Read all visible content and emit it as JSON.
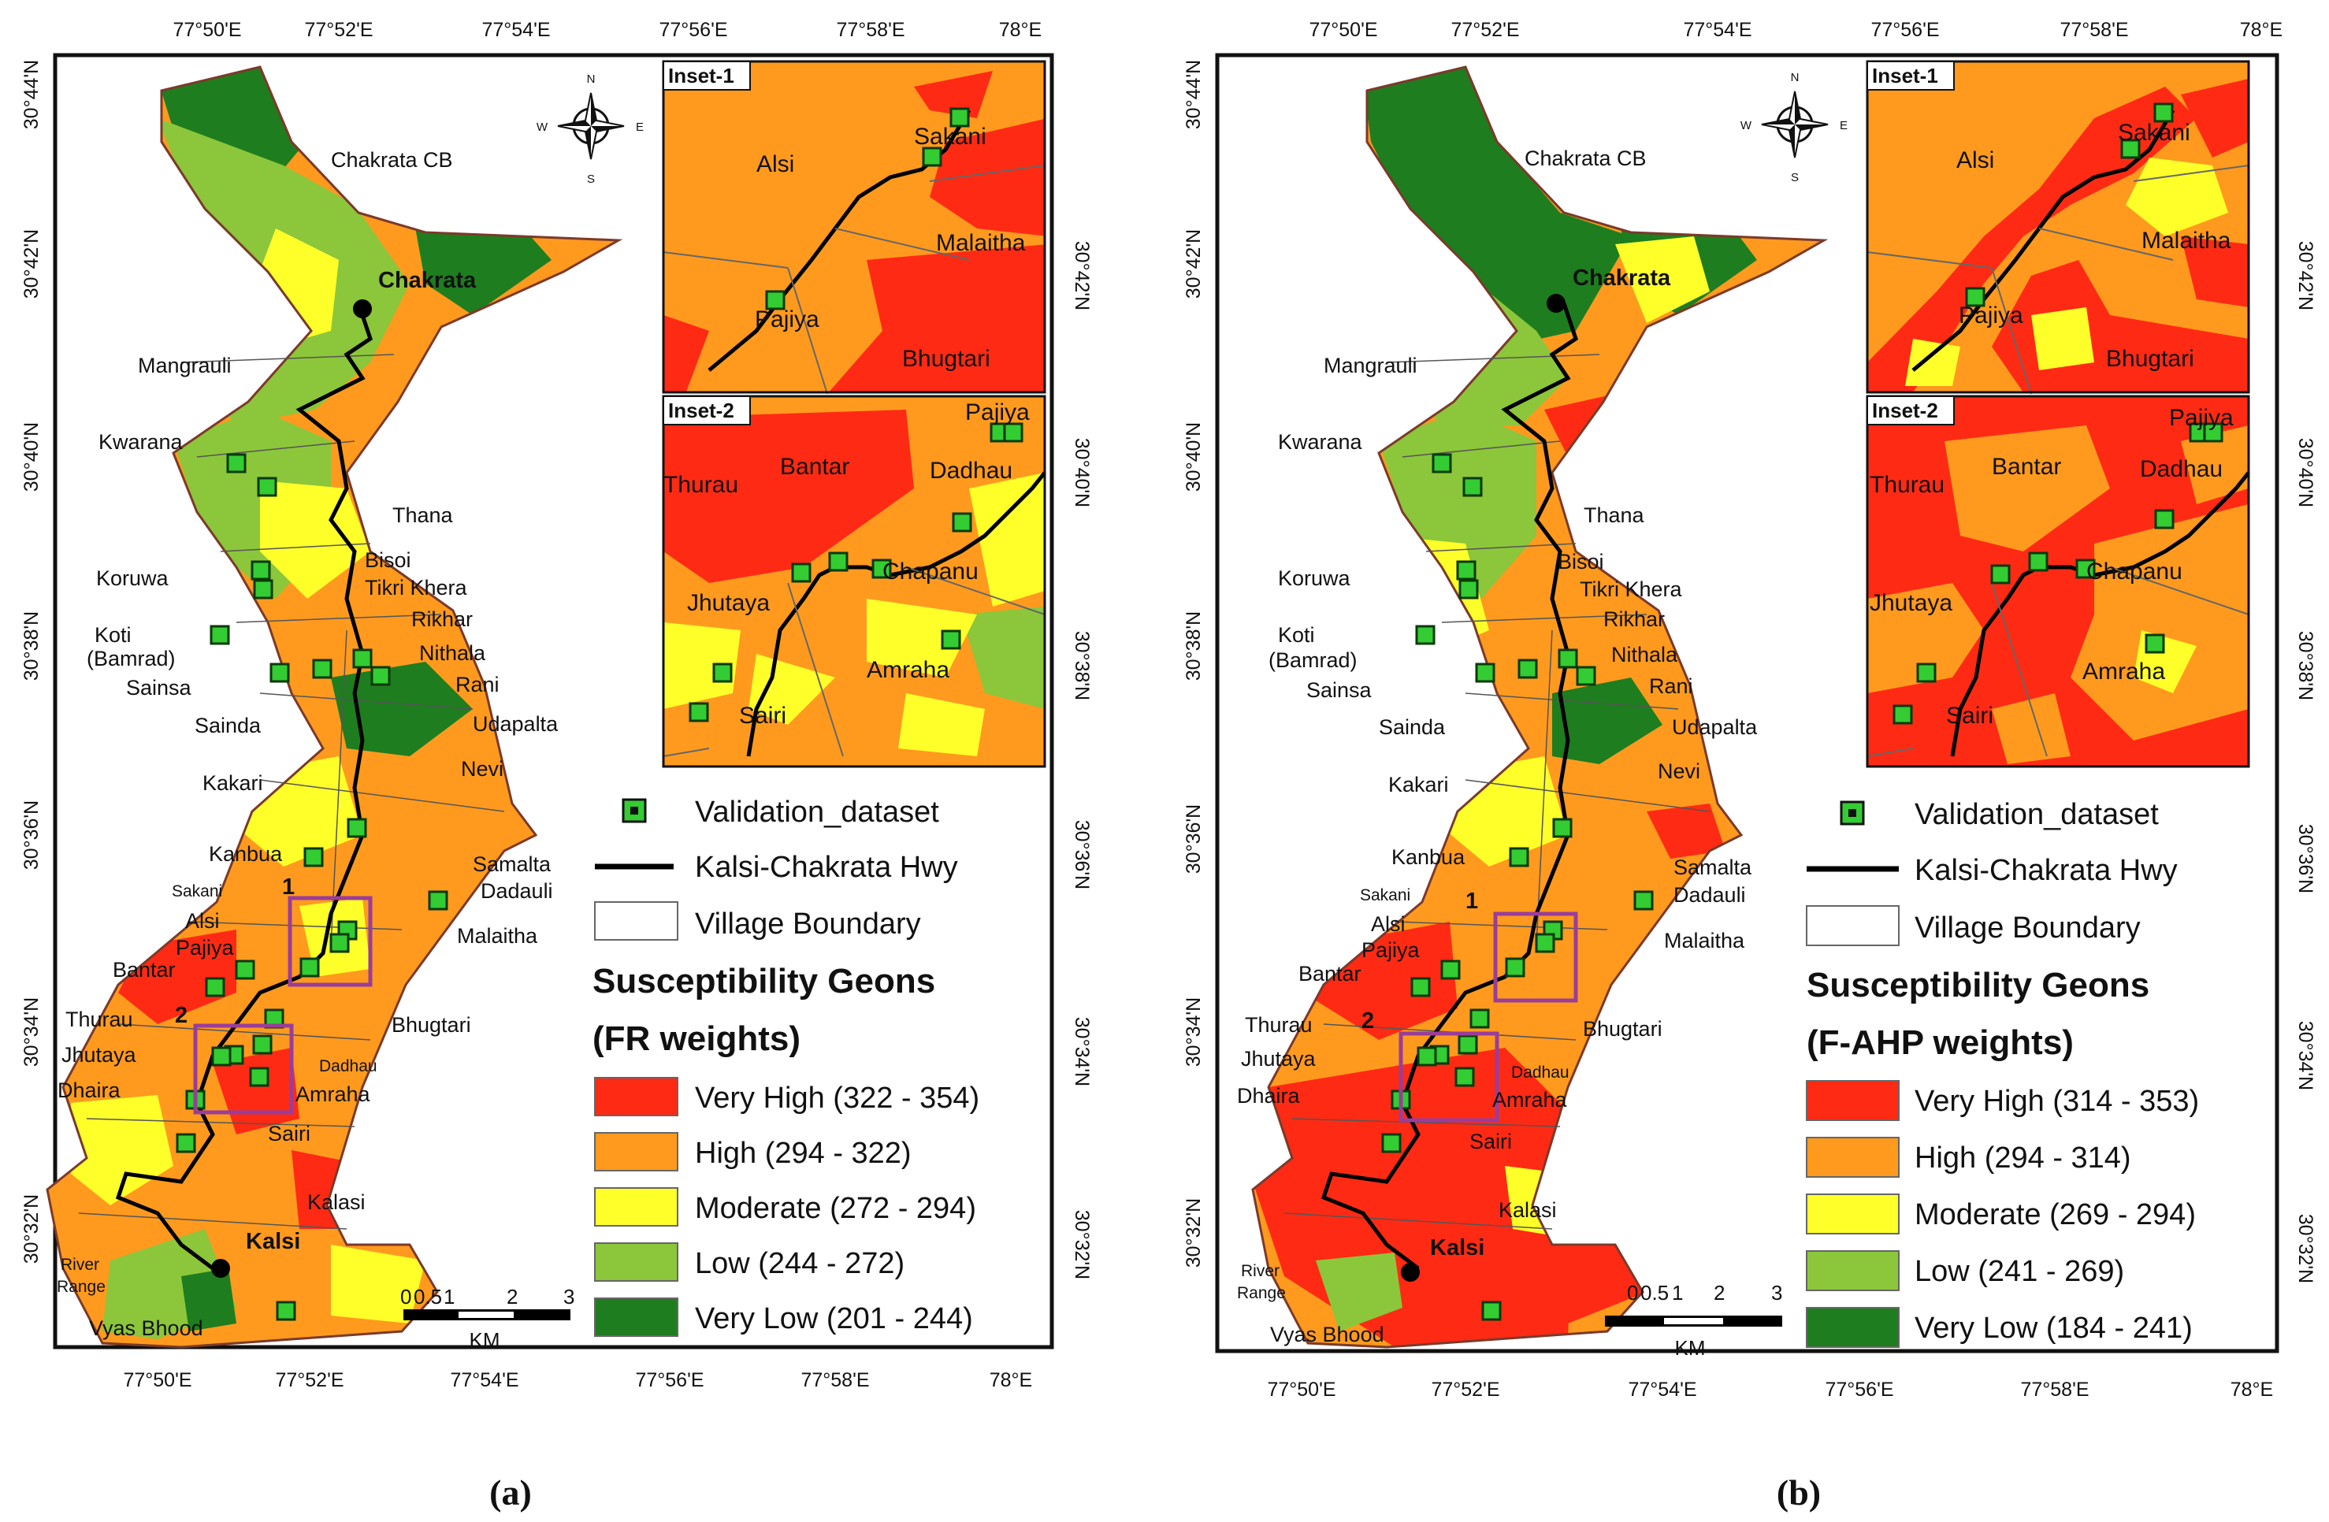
{
  "colors": {
    "very_high": "#ff2a14",
    "high": "#ff9a1e",
    "moderate": "#ffff2a",
    "low": "#8cc63a",
    "very_low": "#1e7d1e",
    "validation_fill": "#33cc33",
    "boundary": "#7b3a2a",
    "inset_box": "#9a3d9a"
  },
  "panels": [
    {
      "id": "a",
      "caption": "(a)",
      "top_ticks": [
        "77°50'E",
        "77°52'E",
        "77°54'E",
        "77°56'E",
        "77°58'E",
        "78°E"
      ],
      "bottom_ticks": [
        "77°50'E",
        "77°52'E",
        "77°54'E",
        "77°56'E",
        "77°58'E",
        "78°E"
      ],
      "left_ticks": [
        "30°44'N",
        "30°42'N",
        "30°40'N",
        "30°38'N",
        "30°36'N",
        "30°34'N",
        "30°32'N"
      ],
      "right_ticks": [
        "30°42'N",
        "30°40'N",
        "30°38'N",
        "30°36'N",
        "30°34'N",
        "30°32'N"
      ],
      "compass": {
        "n": "N",
        "s": "S",
        "e": "E",
        "w": "W"
      },
      "villages": [
        "Chakrata CB",
        "Mangrauli",
        "Kwarana",
        "Thana",
        "Koruwa",
        "Bisoi",
        "Tikri Khera",
        "Rikhar",
        "Koti",
        "(Bamrad)",
        "Nithala",
        "Sainsa",
        "Rani",
        "Sainda",
        "Udapalta",
        "Kakari",
        "Nevi",
        "Kanbua",
        "Samalta",
        "Dadauli",
        "Sakani",
        "Alsi",
        "Malaitha",
        "Pajiya",
        "Bantar",
        "Thurau",
        "Bhugtari",
        "Jhutaya",
        "Dadhau",
        "Dhaira",
        "Amraha",
        "Sairi",
        "Kalasi",
        "River",
        "Range",
        "Vyas Bhood"
      ],
      "towns": [
        "Chakrata",
        "Kalsi"
      ],
      "inset_markers": [
        "1",
        "2"
      ],
      "insets": [
        {
          "tag": "Inset-1",
          "villages": [
            "Alsi",
            "Sakani",
            "Malaitha",
            "Pajiya",
            "Bhugtari"
          ]
        },
        {
          "tag": "Inset-2",
          "villages": [
            "Pajiya",
            "Thurau",
            "Bantar",
            "Dadhau",
            "Chapanu",
            "Jhutaya",
            "Amraha",
            "Sairi"
          ]
        }
      ],
      "scalebar": {
        "labels": [
          "0",
          "0.5",
          "1",
          "2",
          "3"
        ],
        "unit": "KM"
      },
      "legend": {
        "items": [
          "Validation_dataset",
          "Kalsi-Chakrata Hwy",
          "Village Boundary"
        ],
        "title_line1": "Susceptibility Geons",
        "title_line2": "(FR weights)",
        "classes": [
          {
            "label": "Very High (322 - 354)",
            "key": "very_high"
          },
          {
            "label": "High (294 - 322)",
            "key": "high"
          },
          {
            "label": "Moderate (272 - 294)",
            "key": "moderate"
          },
          {
            "label": "Low (244 - 272)",
            "key": "low"
          },
          {
            "label": "Very Low (201 - 244)",
            "key": "very_low"
          }
        ]
      }
    },
    {
      "id": "b",
      "caption": "(b)",
      "top_ticks": [
        "77°50'E",
        "77°52'E",
        "77°54'E",
        "77°56'E",
        "77°58'E",
        "78°E"
      ],
      "bottom_ticks": [
        "77°50'E",
        "77°52'E",
        "77°54'E",
        "77°56'E",
        "77°58'E",
        "78°E"
      ],
      "left_ticks": [
        "30°44'N",
        "30°42'N",
        "30°40'N",
        "30°38'N",
        "30°36'N",
        "30°34'N",
        "30°32'N"
      ],
      "right_ticks": [
        "30°42'N",
        "30°40'N",
        "30°38'N",
        "30°36'N",
        "30°34'N",
        "30°32'N"
      ],
      "compass": {
        "n": "N",
        "s": "S",
        "e": "E",
        "w": "W"
      },
      "villages": [
        "Chakrata CB",
        "Mangrauli",
        "Kwarana",
        "Thana",
        "Koruwa",
        "Bisoi",
        "Tikri Khera",
        "Rikhar",
        "Koti",
        "(Bamrad)",
        "Nithala",
        "Sainsa",
        "Rani",
        "Sainda",
        "Udapalta",
        "Kakari",
        "Nevi",
        "Kanbua",
        "Samalta",
        "Dadauli",
        "Sakani",
        "Alsi",
        "Malaitha",
        "Pajiya",
        "Bantar",
        "Thurau",
        "Bhugtari",
        "Jhutaya",
        "Dadhau",
        "Dhaira",
        "Amraha",
        "Sairi",
        "Kalasi",
        "River",
        "Range",
        "Vyas Bhood"
      ],
      "towns": [
        "Chakrata",
        "Kalsi"
      ],
      "inset_markers": [
        "1",
        "2"
      ],
      "insets": [
        {
          "tag": "Inset-1",
          "villages": [
            "Alsi",
            "Sakani",
            "Malaitha",
            "Pajiya",
            "Bhugtari"
          ]
        },
        {
          "tag": "Inset-2",
          "villages": [
            "Pajiya",
            "Thurau",
            "Bantar",
            "Dadhau",
            "Chapanu",
            "Jhutaya",
            "Amraha",
            "Sairi"
          ]
        }
      ],
      "scalebar": {
        "labels": [
          "0",
          "0.5",
          "1",
          "2",
          "3"
        ],
        "unit": "KM"
      },
      "legend": {
        "items": [
          "Validation_dataset",
          "Kalsi-Chakrata Hwy",
          "Village Boundary"
        ],
        "title_line1": "Susceptibility Geons",
        "title_line2": "(F-AHP weights)",
        "classes": [
          {
            "label": "Very High (314 - 353)",
            "key": "very_high"
          },
          {
            "label": "High (294 - 314)",
            "key": "high"
          },
          {
            "label": "Moderate (269 - 294)",
            "key": "moderate"
          },
          {
            "label": "Low (241 - 269)",
            "key": "low"
          },
          {
            "label": "Very Low (184 - 241)",
            "key": "very_low"
          }
        ]
      }
    }
  ]
}
